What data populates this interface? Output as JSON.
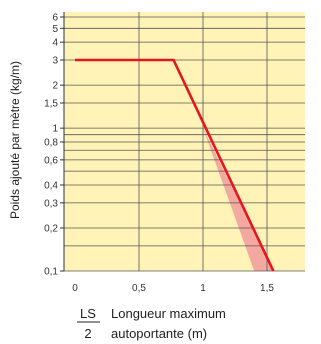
{
  "chart_data": {
    "type": "line",
    "xlabel_symbol_top": "LS",
    "xlabel_symbol_bottom": "2",
    "xlabel_line1": "Longueur maximum",
    "xlabel_line2": "autoportante (m)",
    "ylabel": "Poids ajouté par mètre (kg/m)",
    "xlim": [
      0,
      1.9
    ],
    "ylim": [
      0.1,
      6
    ],
    "y_scale": "log",
    "x_ticks": [
      0,
      0.5,
      1,
      1.5
    ],
    "x_tick_labels": [
      "0",
      "0,5",
      "1",
      "1,5"
    ],
    "y_ticks": [
      0.1,
      0.2,
      0.3,
      0.4,
      0.6,
      0.8,
      1,
      1.5,
      2,
      3,
      4,
      5,
      6
    ],
    "y_tick_labels": [
      "0,1",
      "0,2",
      "0,3",
      "0,4",
      "0,6",
      "0,8",
      "1",
      "1,5",
      "2",
      "3",
      "4",
      "5",
      "6"
    ],
    "x_grid": [
      0.5,
      1,
      1.5
    ],
    "y_grid": [
      0.1,
      0.15,
      0.2,
      0.3,
      0.4,
      0.5,
      0.6,
      0.7,
      0.8,
      0.9,
      1,
      1.5,
      2,
      3,
      4,
      5,
      6
    ],
    "grid": true,
    "series": [
      {
        "values_x": [
          0,
          0.77,
          1.55
        ],
        "values_y": [
          3,
          3,
          0.1
        ]
      }
    ],
    "band": {
      "upper_x": [
        1.0,
        1.55
      ],
      "upper_y": [
        1.0,
        0.1
      ],
      "lower_x": [
        1.0,
        1.4
      ],
      "lower_y": [
        1.0,
        0.1
      ]
    },
    "colors": {
      "background": "#FFF3B8",
      "grid": "#555555",
      "line": "#E8141C",
      "band": "#F4A9A0"
    }
  }
}
